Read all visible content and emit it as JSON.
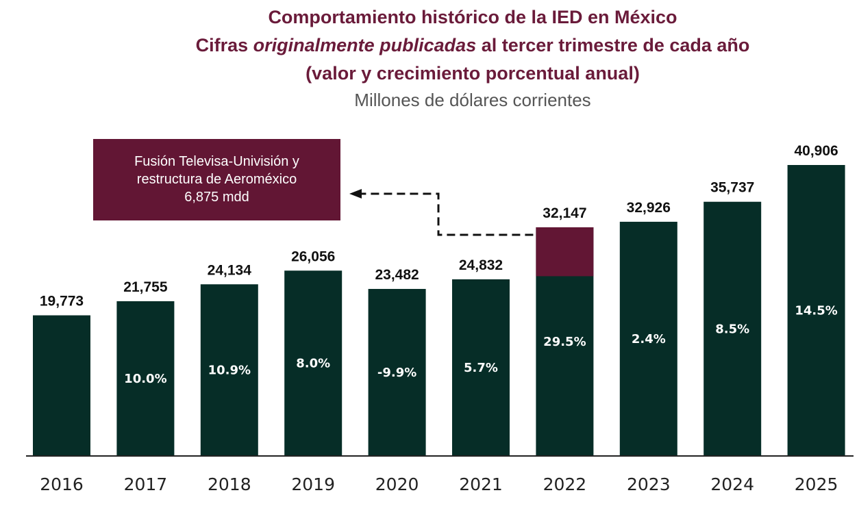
{
  "chart_data": {
    "type": "bar",
    "title": [
      "Comportamiento histórico de la IED en México",
      "Cifras originalmente publicadas al tercer trimestre de cada año",
      "(valor y crecimiento porcentual anual)"
    ],
    "title_parts": {
      "line2_pre": "Cifras ",
      "line2_italic": "originalmente publicadas",
      "line2_post": " al tercer trimestre de cada año"
    },
    "subtitle": "Millones de dólares corrientes",
    "xlabel": "",
    "ylabel": "",
    "ylim": [
      0,
      40906
    ],
    "grid": false,
    "categories": [
      "2016",
      "2017",
      "2018",
      "2019",
      "2020",
      "2021",
      "2022",
      "2023",
      "2024",
      "2025"
    ],
    "values": [
      19773,
      21755,
      24134,
      26056,
      23482,
      24832,
      32147,
      32926,
      35737,
      40906
    ],
    "value_labels": [
      "19,773",
      "21,755",
      "24,134",
      "26,056",
      "23,482",
      "24,832",
      "32,147",
      "32,926",
      "35,737",
      "40,906"
    ],
    "growth_labels": [
      "",
      "10.0%",
      "10.9%",
      "8.0%",
      "-9.9%",
      "5.7%",
      "29.5%",
      "2.4%",
      "8.5%",
      "14.5%"
    ],
    "highlight": {
      "category": "2022",
      "value": 6875
    },
    "annotation": [
      "Fusión Televisa-Univisión y",
      "restructura de Aeroméxico",
      "6,875 mdd"
    ],
    "colors": {
      "bar": "#062d27",
      "highlight": "#621634",
      "title": "#6a1b3a"
    }
  }
}
